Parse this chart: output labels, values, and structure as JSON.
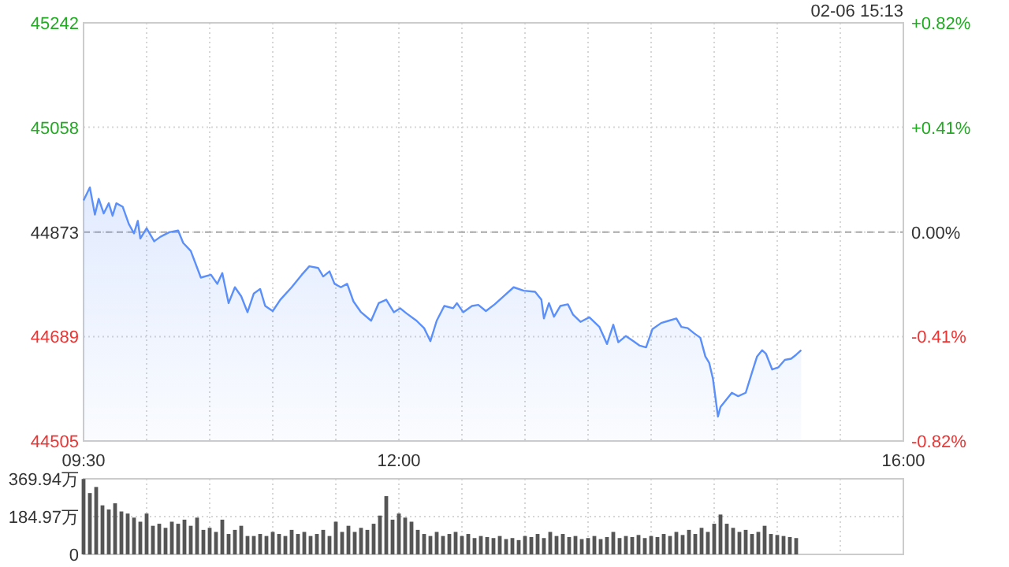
{
  "chart_data": [
    {
      "type": "area",
      "annotations": [
        "02-06 15:13"
      ],
      "x": [
        9.5,
        9.55,
        9.59,
        9.62,
        9.66,
        9.7,
        9.73,
        9.76,
        9.81,
        9.86,
        9.9,
        9.93,
        9.95,
        10.0,
        10.06,
        10.11,
        10.18,
        10.25,
        10.29,
        10.35,
        10.43,
        10.51,
        10.56,
        10.6,
        10.65,
        10.7,
        10.75,
        10.8,
        10.85,
        10.9,
        10.94,
        11.0,
        11.06,
        11.15,
        11.23,
        11.29,
        11.36,
        11.4,
        11.45,
        11.49,
        11.54,
        11.59,
        11.64,
        11.7,
        11.78,
        11.84,
        11.9,
        11.96,
        12.01,
        12.06,
        12.14,
        12.2,
        12.25,
        12.3,
        12.36,
        12.43,
        12.46,
        12.51,
        12.58,
        12.63,
        12.69,
        12.76,
        12.84,
        12.91,
        12.99,
        13.08,
        13.13,
        13.15,
        13.19,
        13.23,
        13.28,
        13.34,
        13.38,
        13.44,
        13.51,
        13.59,
        13.65,
        13.7,
        13.74,
        13.8,
        13.86,
        13.91,
        13.96,
        14.01,
        14.08,
        14.14,
        14.2,
        14.24,
        14.29,
        14.34,
        14.39,
        14.43,
        14.46,
        14.49,
        14.53,
        14.55,
        14.59,
        14.64,
        14.69,
        14.75,
        14.8,
        14.84,
        14.88,
        14.91,
        14.96,
        15.01,
        15.06,
        15.11,
        15.15,
        15.19
      ],
      "series": [
        {
          "color": "#5b8ff9",
          "values": [
            44929,
            44952,
            44904,
            44932,
            44906,
            44924,
            44902,
            44924,
            44918,
            44887,
            44871,
            44893,
            44862,
            44880,
            44857,
            44865,
            44873,
            44876,
            44854,
            44840,
            44793,
            44798,
            44782,
            44801,
            44748,
            44776,
            44760,
            44732,
            44765,
            44773,
            44743,
            44734,
            44754,
            44776,
            44798,
            44813,
            44810,
            44795,
            44804,
            44782,
            44776,
            44782,
            44751,
            44732,
            44717,
            44748,
            44754,
            44732,
            44739,
            44730,
            44717,
            44704,
            44681,
            44717,
            44743,
            44739,
            44748,
            44732,
            44743,
            44745,
            44734,
            44746,
            44762,
            44776,
            44770,
            44768,
            44754,
            44721,
            44748,
            44724,
            44743,
            44746,
            44728,
            44715,
            44723,
            44706,
            44676,
            44710,
            44679,
            44690,
            44681,
            44673,
            44670,
            44702,
            44713,
            44717,
            44721,
            44706,
            44704,
            44695,
            44687,
            44654,
            44643,
            44615,
            44548,
            44565,
            44576,
            44590,
            44584,
            44590,
            44626,
            44654,
            44665,
            44659,
            44631,
            44635,
            44648,
            44650,
            44657,
            44665
          ]
        }
      ],
      "xlim": [
        9.5,
        16
      ],
      "xticks": [
        {
          "value": 9.5,
          "label": "09:30"
        },
        {
          "value": 10,
          "label": null
        },
        {
          "value": 10.5,
          "label": null
        },
        {
          "value": 11,
          "label": null
        },
        {
          "value": 11.5,
          "label": null
        },
        {
          "value": 12,
          "label": "12:00"
        },
        {
          "value": 12.5,
          "label": null
        },
        {
          "value": 13,
          "label": null
        },
        {
          "value": 13.5,
          "label": null
        },
        {
          "value": 14,
          "label": null
        },
        {
          "value": 14.5,
          "label": null
        },
        {
          "value": 15,
          "label": null
        },
        {
          "value": 15.5,
          "label": null
        },
        {
          "value": 16,
          "label": "16:00"
        }
      ],
      "ylim": [
        44505,
        45242
      ],
      "yticks": [
        44505,
        44689,
        44873,
        45058,
        45242
      ],
      "y2lim": [
        -0.82,
        0.82
      ],
      "y2ticks": [
        {
          "value": -0.82,
          "label": "-0.82%"
        },
        {
          "value": -0.41,
          "label": "-0.41%"
        },
        {
          "value": 0,
          "label": "0.00%"
        },
        {
          "value": 0.41,
          "label": "+0.41%"
        },
        {
          "value": 0.82,
          "label": "+0.82%"
        }
      ],
      "ref_lines": [
        {
          "axis": "y",
          "value": 44873,
          "line_style": "dashed",
          "color": "#aaaaaa"
        }
      ],
      "grid": true,
      "line_style": "solid"
    },
    {
      "type": "bar",
      "color": "#555555",
      "x": [
        9.5,
        9.55,
        9.6,
        9.65,
        9.7,
        9.75,
        9.8,
        9.85,
        9.9,
        9.95,
        10.0,
        10.05,
        10.1,
        10.15,
        10.2,
        10.25,
        10.3,
        10.35,
        10.4,
        10.45,
        10.5,
        10.55,
        10.6,
        10.65,
        10.7,
        10.75,
        10.8,
        10.85,
        10.9,
        10.95,
        11.0,
        11.05,
        11.1,
        11.15,
        11.2,
        11.25,
        11.3,
        11.35,
        11.4,
        11.45,
        11.5,
        11.55,
        11.6,
        11.65,
        11.7,
        11.75,
        11.8,
        11.85,
        11.9,
        11.95,
        12.0,
        12.05,
        12.1,
        12.15,
        12.2,
        12.25,
        12.3,
        12.35,
        12.4,
        12.45,
        12.5,
        12.55,
        12.6,
        12.65,
        12.7,
        12.75,
        12.8,
        12.85,
        12.9,
        12.95,
        13.0,
        13.05,
        13.1,
        13.15,
        13.2,
        13.25,
        13.3,
        13.35,
        13.4,
        13.45,
        13.5,
        13.55,
        13.6,
        13.65,
        13.7,
        13.75,
        13.8,
        13.85,
        13.9,
        13.95,
        14.0,
        14.05,
        14.1,
        14.15,
        14.2,
        14.25,
        14.3,
        14.35,
        14.4,
        14.45,
        14.5,
        14.55,
        14.6,
        14.65,
        14.7,
        14.75,
        14.8,
        14.85,
        14.9,
        14.95,
        15.0,
        15.05,
        15.1,
        15.15
      ],
      "values": [
        369,
        300,
        330,
        240,
        220,
        250,
        210,
        200,
        180,
        160,
        200,
        140,
        150,
        130,
        160,
        150,
        170,
        140,
        180,
        120,
        130,
        110,
        170,
        100,
        120,
        140,
        90,
        90,
        100,
        90,
        110,
        100,
        90,
        120,
        100,
        110,
        90,
        100,
        120,
        90,
        160,
        110,
        140,
        110,
        130,
        120,
        150,
        190,
        285,
        170,
        200,
        180,
        160,
        120,
        100,
        90,
        110,
        90,
        100,
        110,
        90,
        100,
        80,
        90,
        85,
        80,
        90,
        75,
        80,
        70,
        90,
        85,
        100,
        80,
        110,
        90,
        100,
        85,
        90,
        75,
        80,
        90,
        75,
        85,
        110,
        80,
        90,
        85,
        95,
        80,
        90,
        85,
        100,
        90,
        110,
        95,
        120,
        100,
        130,
        110,
        150,
        195,
        150,
        130,
        110,
        120,
        100,
        110,
        140,
        100,
        95,
        90,
        85,
        80
      ],
      "xlim": [
        9.5,
        16
      ],
      "xticks": [
        {
          "value": 9.5,
          "label": null
        },
        {
          "value": 10,
          "label": null
        },
        {
          "value": 10.5,
          "label": null
        },
        {
          "value": 11,
          "label": null
        },
        {
          "value": 11.5,
          "label": null
        },
        {
          "value": 12,
          "label": null
        },
        {
          "value": 12.5,
          "label": null
        },
        {
          "value": 13,
          "label": null
        },
        {
          "value": 13.5,
          "label": null
        },
        {
          "value": 14,
          "label": null
        },
        {
          "value": 14.5,
          "label": null
        },
        {
          "value": 15,
          "label": null
        },
        {
          "value": 15.5,
          "label": null
        },
        {
          "value": 16,
          "label": null
        }
      ],
      "ylim": [
        0,
        369.94
      ],
      "yticks": [
        {
          "value": 0,
          "label": "0"
        },
        {
          "value": 184.97,
          "label": "184.97万"
        },
        {
          "value": 369.94,
          "label": "369.94万"
        }
      ],
      "tick_labels": "y",
      "grid": true
    }
  ]
}
